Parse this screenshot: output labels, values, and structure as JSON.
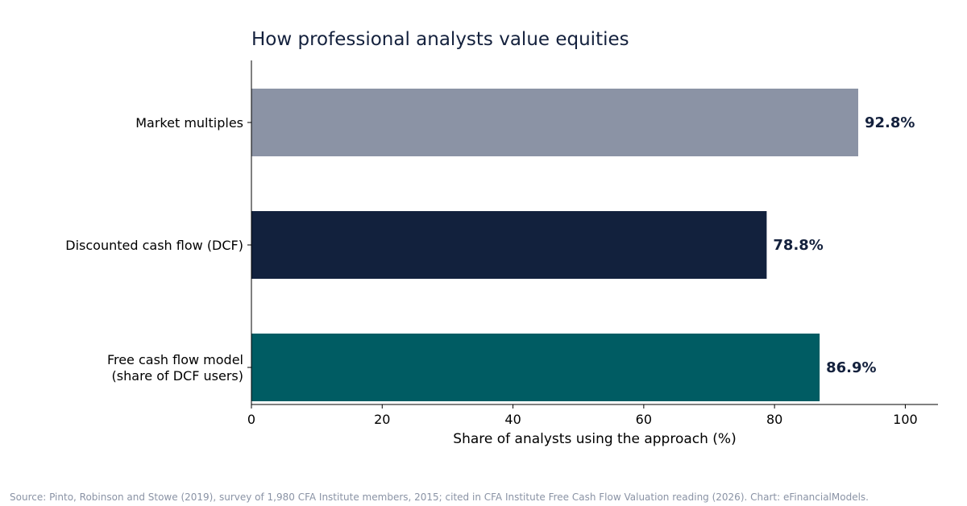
{
  "chart_data": {
    "type": "bar",
    "orientation": "horizontal",
    "title": "How professional analysts value equities",
    "xlabel": "Share of analysts using the approach (%)",
    "ylabel": "",
    "xlim": [
      0,
      105
    ],
    "xticks": [
      0,
      20,
      40,
      60,
      80,
      100
    ],
    "grid": false,
    "categories": [
      [
        "Market multiples"
      ],
      [
        "Discounted cash flow (DCF)"
      ],
      [
        "Free cash flow model",
        "(share of DCF users)"
      ]
    ],
    "values": [
      92.8,
      78.8,
      86.9
    ],
    "value_labels": [
      "92.8%",
      "78.8%",
      "86.9%"
    ],
    "colors": [
      "#8b93a5",
      "#12213d",
      "#005c63"
    ]
  },
  "source_note": "Source: Pinto, Robinson and Stowe (2019), survey of 1,980 CFA Institute members, 2015; cited in CFA Institute Free Cash Flow Valuation reading (2026). Chart: eFinancialModels."
}
